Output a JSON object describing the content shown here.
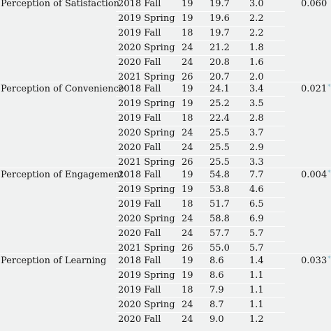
{
  "table": {
    "groups": [
      {
        "measure": "Perception of Satisfaction",
        "p_value": "0.060",
        "significant": false,
        "rows": [
          {
            "semester": "2018 Fall",
            "n": "19",
            "mean": "19.7",
            "sd": "3.0"
          },
          {
            "semester": "2019 Spring",
            "n": "19",
            "mean": "19.6",
            "sd": "2.2"
          },
          {
            "semester": "2019 Fall",
            "n": "18",
            "mean": "19.7",
            "sd": "2.2"
          },
          {
            "semester": "2020 Spring",
            "n": "24",
            "mean": "21.2",
            "sd": "1.8"
          },
          {
            "semester": "2020 Fall",
            "n": "24",
            "mean": "20.8",
            "sd": "1.6"
          },
          {
            "semester": "2021 Spring",
            "n": "26",
            "mean": "20.7",
            "sd": "2.0"
          }
        ]
      },
      {
        "measure": "Perception of Convenience",
        "p_value": "0.021",
        "significant": true,
        "rows": [
          {
            "semester": "2018 Fall",
            "n": "19",
            "mean": "24.1",
            "sd": "3.4"
          },
          {
            "semester": "2019 Spring",
            "n": "19",
            "mean": "25.2",
            "sd": "3.5"
          },
          {
            "semester": "2019 Fall",
            "n": "18",
            "mean": "22.4",
            "sd": "2.8"
          },
          {
            "semester": "2020 Spring",
            "n": "24",
            "mean": "25.5",
            "sd": "3.7"
          },
          {
            "semester": "2020 Fall",
            "n": "24",
            "mean": "25.5",
            "sd": "2.9"
          },
          {
            "semester": "2021 Spring",
            "n": "26",
            "mean": "25.5",
            "sd": "3.3"
          }
        ]
      },
      {
        "measure": "Perception of Engagement",
        "p_value": "0.004",
        "significant": true,
        "rows": [
          {
            "semester": "2018 Fall",
            "n": "19",
            "mean": "54.8",
            "sd": "7.7"
          },
          {
            "semester": "2019 Spring",
            "n": "19",
            "mean": "53.8",
            "sd": "4.6"
          },
          {
            "semester": "2019 Fall",
            "n": "18",
            "mean": "51.7",
            "sd": "6.5"
          },
          {
            "semester": "2020 Spring",
            "n": "24",
            "mean": "58.8",
            "sd": "6.9"
          },
          {
            "semester": "2020 Fall",
            "n": "24",
            "mean": "57.7",
            "sd": "5.7"
          },
          {
            "semester": "2021 Spring",
            "n": "26",
            "mean": "55.0",
            "sd": "5.7"
          }
        ]
      },
      {
        "measure": "Perception of Learning",
        "p_value": "0.033",
        "significant": true,
        "rows": [
          {
            "semester": "2018 Fall",
            "n": "19",
            "mean": "8.6",
            "sd": "1.4"
          },
          {
            "semester": "2019 Spring",
            "n": "19",
            "mean": "8.6",
            "sd": "1.1"
          },
          {
            "semester": "2019 Fall",
            "n": "18",
            "mean": "7.9",
            "sd": "1.1"
          },
          {
            "semester": "2020 Spring",
            "n": "24",
            "mean": "8.7",
            "sd": "1.1"
          },
          {
            "semester": "2020 Fall",
            "n": "24",
            "mean": "9.0",
            "sd": "1.2"
          }
        ]
      }
    ],
    "significance_marker": "*"
  }
}
